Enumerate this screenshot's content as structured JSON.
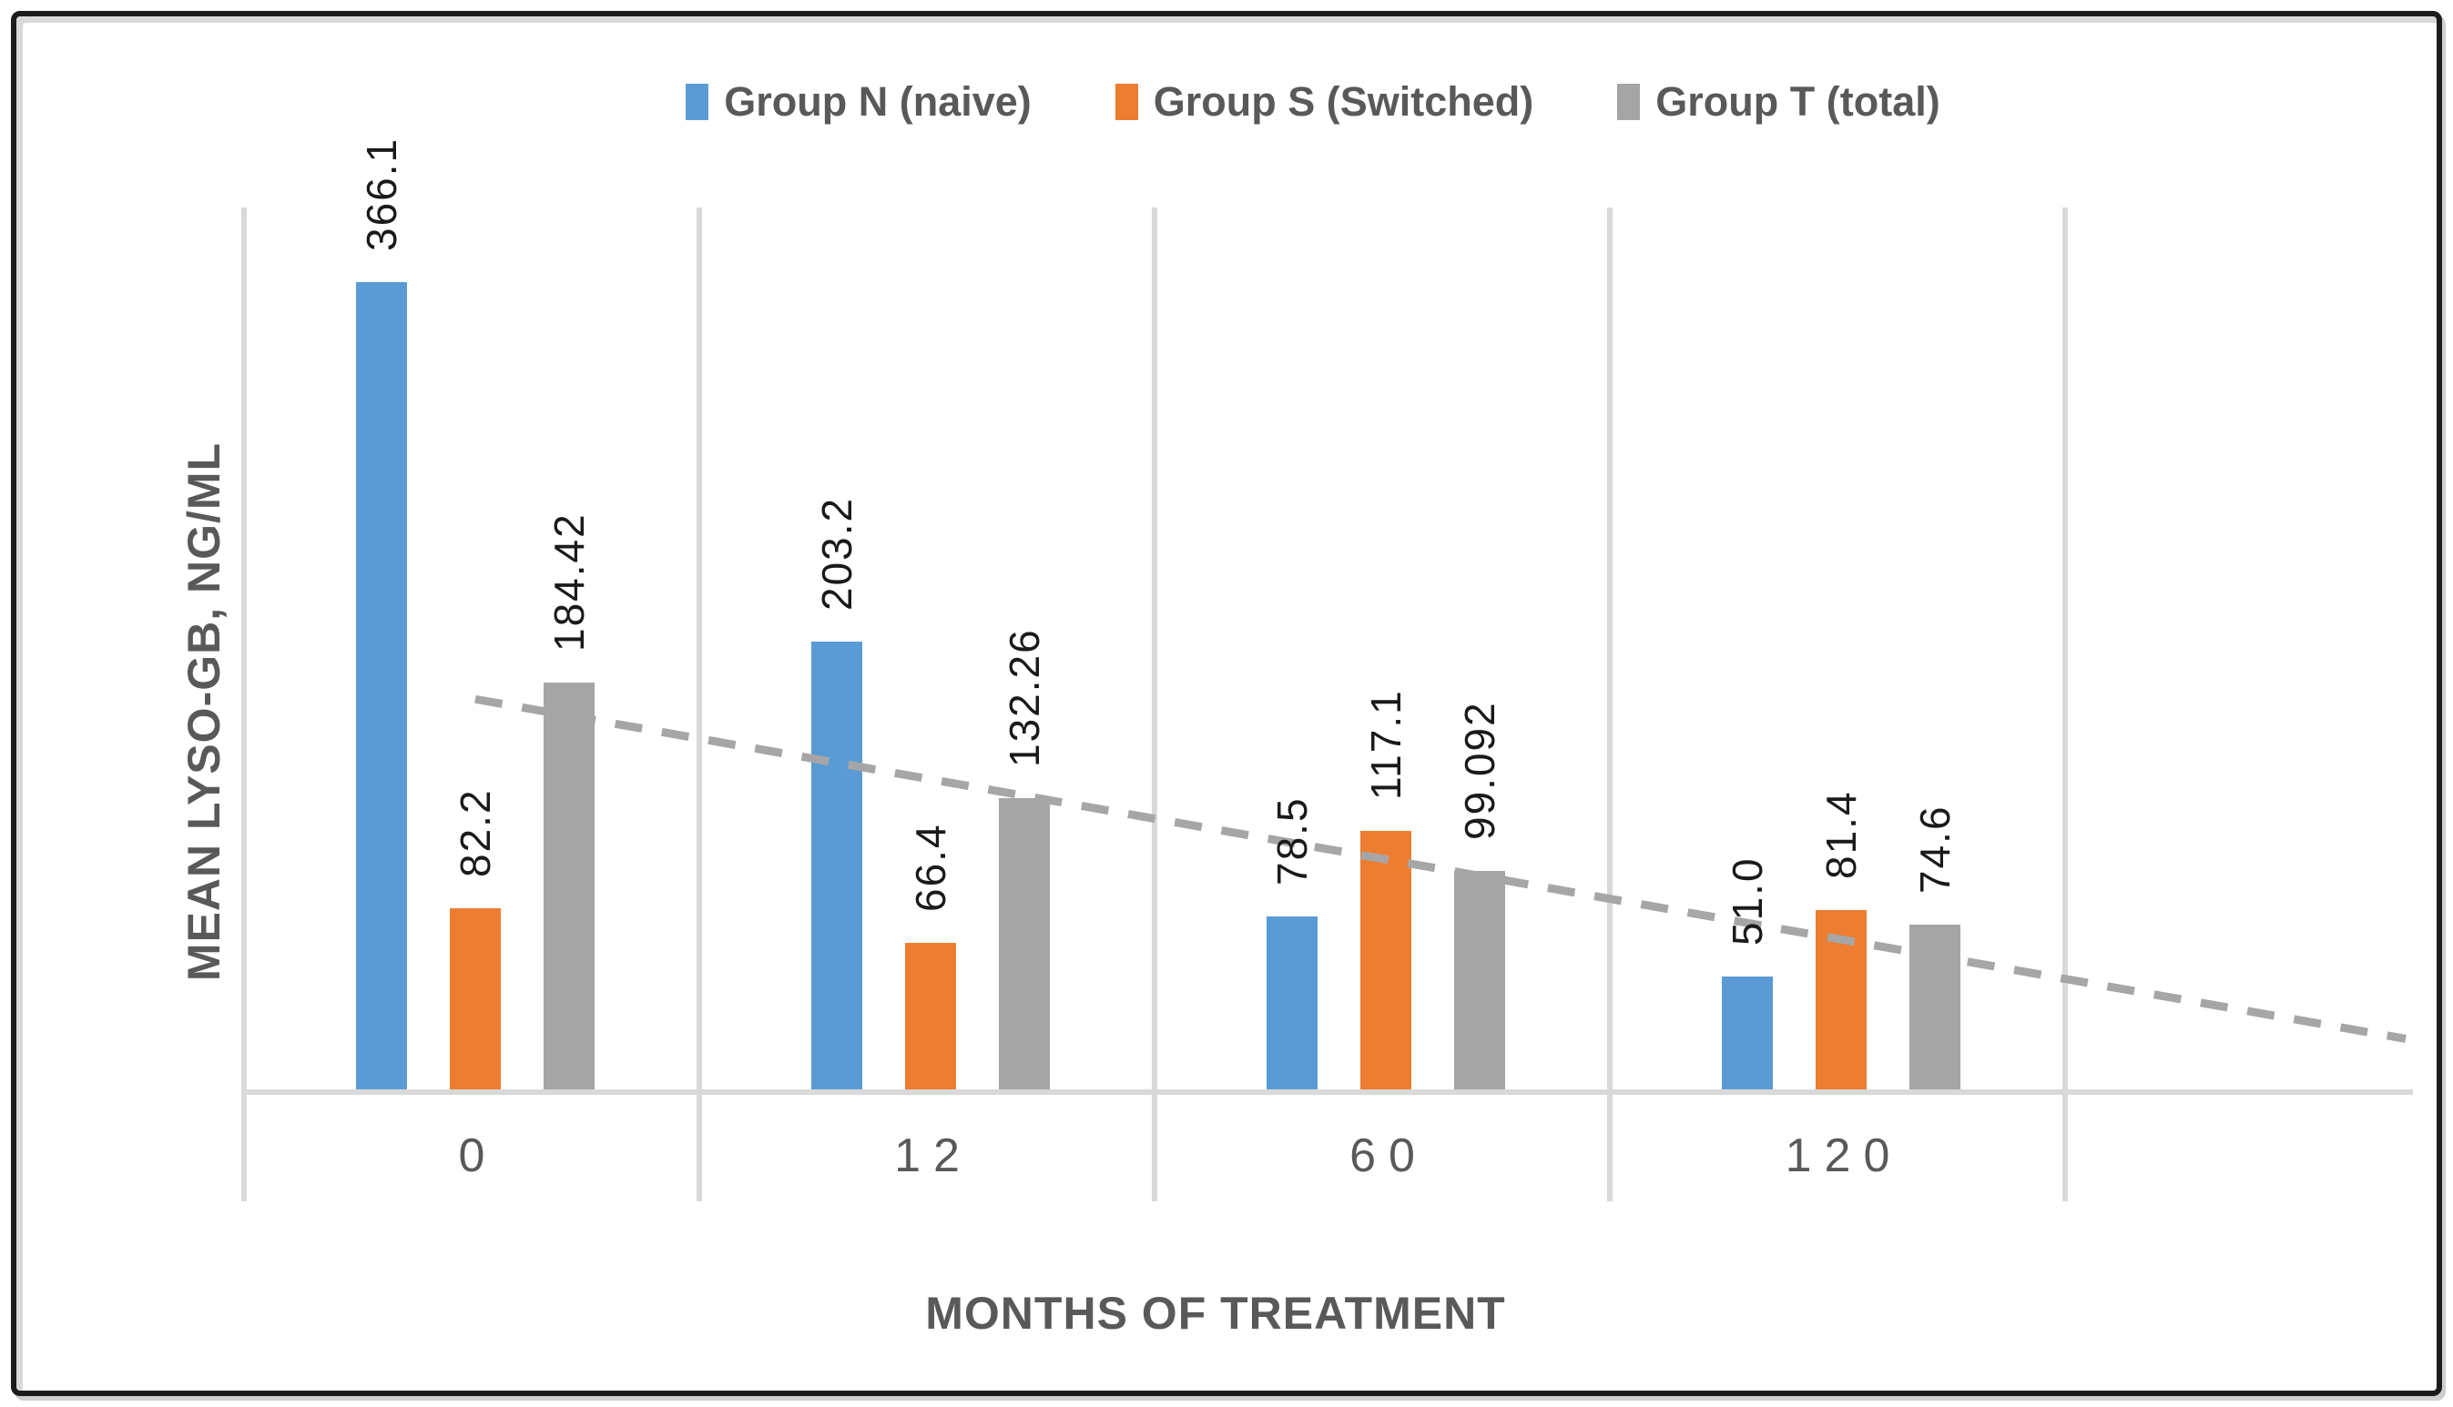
{
  "chart_data": {
    "type": "bar",
    "title": "",
    "xlabel": "MONTHS OF TREATMENT",
    "ylabel": "MEAN LYSO-GB, NG/ML",
    "categories": [
      "0",
      "12",
      "60",
      "120"
    ],
    "series": [
      {
        "name": "Group N (naive)",
        "color": "#5B9BD5",
        "values": [
          366.1,
          203.2,
          78.5,
          51.0
        ],
        "labels": [
          "366.1",
          "203.2",
          "78.5",
          "51.0"
        ]
      },
      {
        "name": "Group S (Switched)",
        "color": "#ED7D31",
        "values": [
          82.2,
          66.4,
          117.1,
          81.4
        ],
        "labels": [
          "82.2",
          "66.4",
          "117.1",
          "81.4"
        ]
      },
      {
        "name": "Group T (total)",
        "color": "#A5A5A5",
        "values": [
          184.42,
          132.26,
          99.092,
          74.6
        ],
        "labels": [
          "184.42",
          "132.26",
          "99.092",
          "74.6"
        ]
      }
    ],
    "trendline": {
      "on_series": "Group T (total)",
      "series_index": 2,
      "fit": "linear",
      "style": "dashed",
      "color": "#A6A6A6"
    },
    "ylim": [
      0,
      400
    ],
    "grid": "vertical category separators only",
    "legend_position": "top",
    "data_labels": "rotated 90deg above bars"
  },
  "colors": {
    "axis_line": "#D9D9D9",
    "tick_text": "#595959",
    "axis_title_text": "#595959",
    "legend_text": "#595959",
    "data_label_text": "#1A1A1A",
    "background": "#FFFFFF",
    "frame_border": "#1C1C1C"
  }
}
